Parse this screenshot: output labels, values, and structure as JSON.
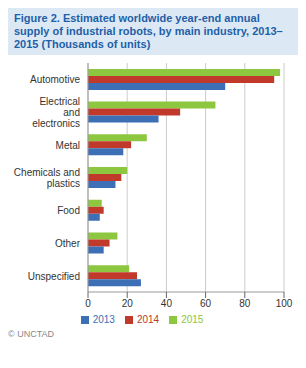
{
  "chart_data": {
    "type": "bar",
    "orientation": "horizontal",
    "title": "Figure 2. Estimated worldwide year-end annual supply of industrial robots, by main industry, 2013–2015 (Thousands of units)",
    "categories": [
      "Automotive",
      "Electrical and electronics",
      "Metal",
      "Chemicals and plastics",
      "Food",
      "Other",
      "Unspecified"
    ],
    "series": [
      {
        "name": "2015",
        "color": "#8dc63f",
        "values": [
          98,
          65,
          30,
          20,
          7,
          15,
          21
        ]
      },
      {
        "name": "2014",
        "color": "#c0392b",
        "values": [
          95,
          47,
          22,
          17,
          8,
          11,
          25
        ]
      },
      {
        "name": "2013",
        "color": "#3d6fb6",
        "values": [
          70,
          36,
          18,
          14,
          6,
          8,
          27
        ]
      }
    ],
    "xlim": [
      0,
      100
    ],
    "xticks": [
      0,
      20,
      40,
      60,
      80,
      100
    ],
    "grid": true,
    "legend": "bottom",
    "annotations": [
      "© UNCTAD"
    ]
  }
}
